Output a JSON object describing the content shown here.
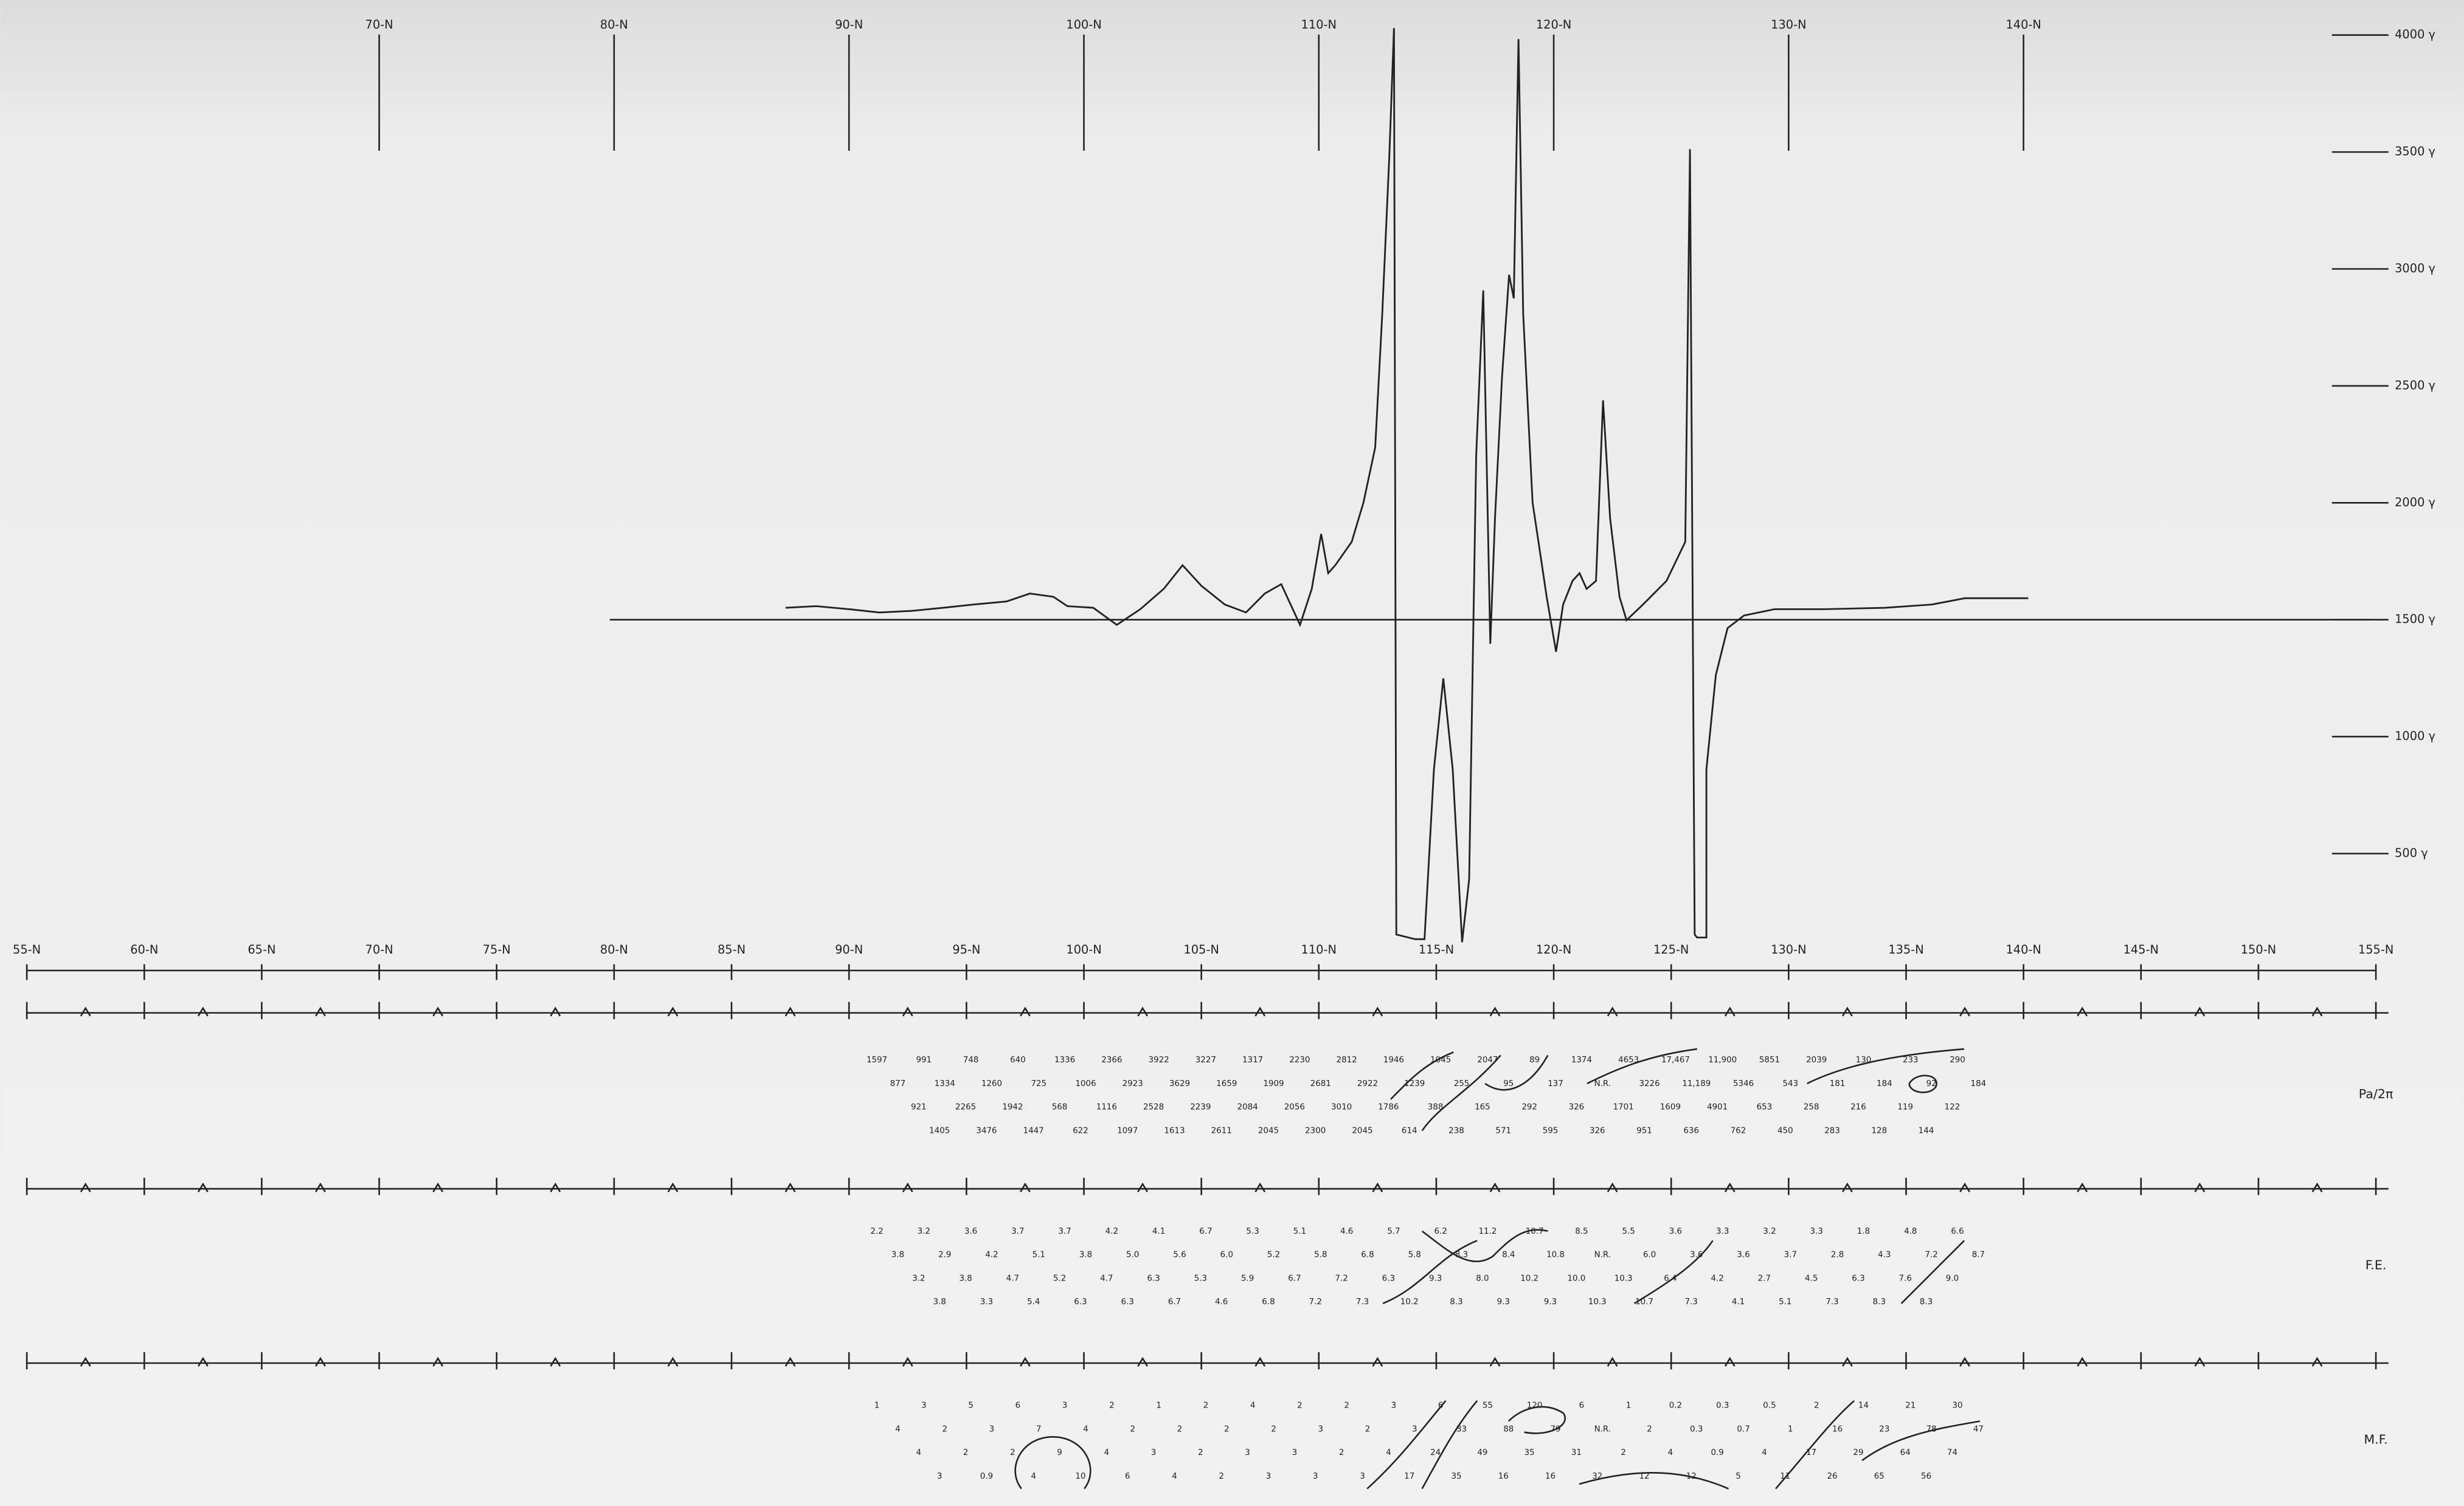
{
  "chart_data": {
    "type": "line",
    "color": "#222222",
    "x": [
      87.3,
      88.6,
      90.0,
      91.3,
      92.7,
      94.0,
      95.3,
      96.7,
      97.7,
      98.7,
      99.3,
      100.4,
      101.4,
      102.4,
      103.4,
      104.2,
      105.0,
      106.0,
      106.9,
      107.7,
      108.4,
      108.8,
      109.2,
      109.7,
      110.1,
      110.4,
      110.7,
      111.4,
      111.9,
      112.4,
      112.7,
      113.0,
      113.2,
      113.3,
      114.1,
      114.5,
      114.9,
      115.3,
      115.7,
      116.1,
      116.4,
      116.7,
      117.0,
      117.3,
      117.5,
      117.8,
      118.1,
      118.3,
      118.5,
      118.7,
      119.1,
      119.4,
      119.7,
      120.1,
      120.4,
      120.8,
      121.1,
      121.4,
      121.8,
      122.1,
      122.4,
      122.8,
      123.1,
      123.8,
      124.8,
      125.6,
      125.8,
      126.0,
      126.1,
      126.5,
      126.5,
      126.9,
      127.4,
      128.1,
      129.4,
      131.5,
      134.1,
      136.1,
      137.5,
      140.2
    ],
    "values": [
      1551,
      1558,
      1545,
      1531,
      1538,
      1551,
      1565,
      1578,
      1612,
      1598,
      1558,
      1551,
      1478,
      1545,
      1632,
      1733,
      1645,
      1565,
      1531,
      1612,
      1652,
      1565,
      1478,
      1632,
      1867,
      1699,
      1733,
      1833,
      2001,
      2236,
      2807,
      3479,
      4030,
      154,
      134,
      134,
      860,
      1249,
      860,
      121,
      390,
      2203,
      2908,
      1397,
      1934,
      2539,
      2975,
      2874,
      3983,
      2807,
      2001,
      1800,
      1598,
      1363,
      1565,
      1666,
      1699,
      1632,
      1666,
      2438,
      1934,
      1598,
      1498,
      1565,
      1666,
      1833,
      3512,
      154,
      141,
      141,
      860,
      1263,
      1464,
      1518,
      1545,
      1545,
      1551,
      1565,
      1592,
      1592
    ],
    "reference_line": 1500,
    "xlim": [
      55,
      155
    ],
    "xticks": [
      {
        "value": 55,
        "label": "55-N"
      },
      {
        "value": 60,
        "label": "60-N"
      },
      {
        "value": 65,
        "label": "65-N"
      },
      {
        "value": 70,
        "label": "70-N"
      },
      {
        "value": 75,
        "label": "75-N"
      },
      {
        "value": 80,
        "label": "80-N"
      },
      {
        "value": 85,
        "label": "85-N"
      },
      {
        "value": 90,
        "label": "90-N"
      },
      {
        "value": 95,
        "label": "95-N"
      },
      {
        "value": 100,
        "label": "100-N"
      },
      {
        "value": 105,
        "label": "105-N"
      },
      {
        "value": 110,
        "label": "110-N"
      },
      {
        "value": 115,
        "label": "115-N"
      },
      {
        "value": 120,
        "label": "120-N"
      },
      {
        "value": 125,
        "label": "125-N"
      },
      {
        "value": 130,
        "label": "130-N"
      },
      {
        "value": 135,
        "label": "135-N"
      },
      {
        "value": 140,
        "label": "140-N"
      },
      {
        "value": 145,
        "label": "145-N"
      },
      {
        "value": 150,
        "label": "150-N"
      },
      {
        "value": 155,
        "label": "155-N"
      }
    ],
    "top_ticks": [
      {
        "value": 70,
        "label": "70-N"
      },
      {
        "value": 80,
        "label": "80-N"
      },
      {
        "value": 90,
        "label": "90-N"
      },
      {
        "value": 100,
        "label": "100-N"
      },
      {
        "value": 110,
        "label": "110-N"
      },
      {
        "value": 120,
        "label": "120-N"
      },
      {
        "value": 130,
        "label": "130-N"
      },
      {
        "value": 140,
        "label": "140-N"
      }
    ],
    "ylim": [
      0,
      4150
    ],
    "yticks": [
      {
        "value": 500,
        "label": "500 γ"
      },
      {
        "value": 1000,
        "label": "1000 γ"
      },
      {
        "value": 1500,
        "label": "1500 γ"
      },
      {
        "value": 2000,
        "label": "2000 γ"
      },
      {
        "value": 2500,
        "label": "2500 γ"
      },
      {
        "value": 3000,
        "label": "3000 γ"
      },
      {
        "value": 3500,
        "label": "3500 γ"
      },
      {
        "value": 4000,
        "label": "4000 γ"
      }
    ]
  },
  "sections": [
    {
      "label": "Pa/2π",
      "rows": [
        [
          "1597",
          "991",
          "748",
          "640",
          "1336",
          "2366",
          "3922",
          "3227",
          "1317",
          "2230",
          "2812",
          "1946",
          "1045",
          "2047",
          "89",
          "1374",
          "4653",
          "17,467",
          "11,900",
          "5851",
          "2039",
          "130",
          "233",
          "290"
        ],
        [
          "877",
          "1334",
          "1260",
          "725",
          "1006",
          "2923",
          "3629",
          "1659",
          "1909",
          "2681",
          "2922",
          "1239",
          "255",
          "95",
          "137",
          "N.R.",
          "3226",
          "11,189",
          "5346",
          "543",
          "181",
          "184",
          "92",
          "184"
        ],
        [
          "921",
          "2265",
          "1942",
          "568",
          "1116",
          "2528",
          "2239",
          "2084",
          "2056",
          "3010",
          "1786",
          "388",
          "165",
          "292",
          "326",
          "1701",
          "1609",
          "4901",
          "653",
          "258",
          "216",
          "119",
          "122"
        ],
        [
          "1405",
          "3476",
          "1447",
          "622",
          "1097",
          "1613",
          "2611",
          "2045",
          "2300",
          "2045",
          "614",
          "238",
          "571",
          "595",
          "326",
          "951",
          "636",
          "762",
          "450",
          "283",
          "128",
          "144"
        ]
      ]
    },
    {
      "label": "F.E.",
      "rows": [
        [
          "2.2",
          "3.2",
          "3.6",
          "3.7",
          "3.7",
          "4.2",
          "4.1",
          "6.7",
          "5.3",
          "5.1",
          "4.6",
          "5.7",
          "6.2",
          "11.2",
          "10.7",
          "8.5",
          "5.5",
          "3.6",
          "3.3",
          "3.2",
          "3.3",
          "1.8",
          "4.8",
          "6.6"
        ],
        [
          "3.8",
          "2.9",
          "4.2",
          "5.1",
          "3.8",
          "5.0",
          "5.6",
          "6.0",
          "5.2",
          "5.8",
          "6.8",
          "5.8",
          "8.3",
          "8.4",
          "10.8",
          "N.R.",
          "6.0",
          "3.6",
          "3.6",
          "3.7",
          "2.8",
          "4.3",
          "7.2",
          "8.7"
        ],
        [
          "3.2",
          "3.8",
          "4.7",
          "5.2",
          "4.7",
          "6.3",
          "5.3",
          "5.9",
          "6.7",
          "7.2",
          "6.3",
          "9.3",
          "8.0",
          "10.2",
          "10.0",
          "10.3",
          "6.4",
          "4.2",
          "2.7",
          "4.5",
          "6.3",
          "7.6",
          "9.0"
        ],
        [
          "3.8",
          "3.3",
          "5.4",
          "6.3",
          "6.3",
          "6.7",
          "4.6",
          "6.8",
          "7.2",
          "7.3",
          "10.2",
          "8.3",
          "9.3",
          "9.3",
          "10.3",
          "10.7",
          "7.3",
          "4.1",
          "5.1",
          "7.3",
          "8.3",
          "8.3"
        ]
      ]
    },
    {
      "label": "M.F.",
      "rows": [
        [
          "1",
          "3",
          "5",
          "6",
          "3",
          "2",
          "1",
          "2",
          "4",
          "2",
          "2",
          "3",
          "6",
          "55",
          "120",
          "6",
          "1",
          "0.2",
          "0.3",
          "0.5",
          "2",
          "14",
          "21",
          "30"
        ],
        [
          "4",
          "2",
          "3",
          "7",
          "4",
          "2",
          "2",
          "2",
          "2",
          "3",
          "2",
          "3",
          "33",
          "88",
          "79",
          "N.R.",
          "2",
          "0.3",
          "0.7",
          "1",
          "16",
          "23",
          "78",
          "47"
        ],
        [
          "4",
          "2",
          "2",
          "9",
          "4",
          "3",
          "2",
          "3",
          "3",
          "2",
          "4",
          "24",
          "49",
          "35",
          "31",
          "2",
          "4",
          "0.9",
          "4",
          "17",
          "29",
          "64",
          "74"
        ],
        [
          "3",
          "0.9",
          "4",
          "10",
          "6",
          "4",
          "2",
          "3",
          "3",
          "3",
          "17",
          "35",
          "16",
          "16",
          "32",
          "12",
          "12",
          "5",
          "11",
          "26",
          "65",
          "56"
        ]
      ]
    }
  ]
}
